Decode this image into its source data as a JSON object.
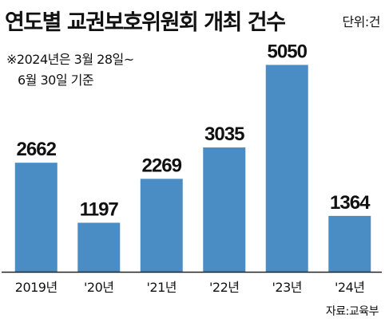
{
  "header": {
    "title": "연도별 교권보호위원회 개최 건수",
    "unit": "단위:건",
    "note_line1": "※2024년은 3월 28일~",
    "note_line2": "6월 30일 기준"
  },
  "footer": {
    "source": "자료:교육부"
  },
  "colors": {
    "bar": "#4a8dc5",
    "text": "#111111",
    "axis": "#222222"
  },
  "chart_data": {
    "type": "bar",
    "title": "연도별 교권보호위원회 개최 건수",
    "xlabel": "",
    "ylabel": "",
    "unit": "단위:건",
    "categories": [
      "2019년",
      "'20년",
      "'21년",
      "'22년",
      "'23년",
      "'24년"
    ],
    "values": [
      2662,
      1197,
      2269,
      3035,
      5050,
      1364
    ],
    "ylim": [
      0,
      5700
    ],
    "grid": false,
    "legend": "none",
    "data_labels": true
  }
}
